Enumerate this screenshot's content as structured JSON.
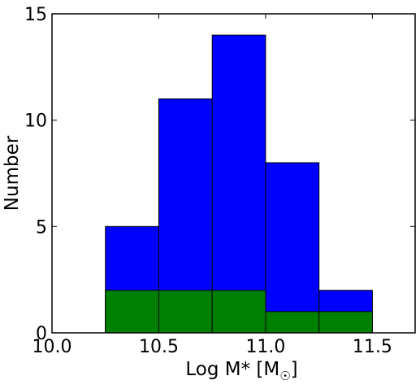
{
  "chart_data": {
    "type": "bar",
    "xlabel": "Log M* [M",
    "xlabel_sub": "☉",
    "xlabel_close": "]",
    "ylabel": "Number",
    "xlim": [
      10.0,
      11.7
    ],
    "ylim": [
      0,
      15
    ],
    "x_ticks": [
      10.0,
      10.5,
      11.0,
      11.5
    ],
    "x_tick_labels": [
      "10.0",
      "10.5",
      "11.0",
      "11.5"
    ],
    "y_ticks": [
      0,
      5,
      10,
      15
    ],
    "y_tick_labels": [
      "0",
      "5",
      "10",
      "15"
    ],
    "bin_edges": [
      10.25,
      10.5,
      10.75,
      11.0,
      11.25,
      11.5
    ],
    "series": [
      {
        "color": "#0000ff",
        "values": [
          5,
          11,
          14,
          8,
          2
        ]
      },
      {
        "color": "#008000",
        "values": [
          2,
          2,
          2,
          1,
          1
        ]
      }
    ]
  }
}
